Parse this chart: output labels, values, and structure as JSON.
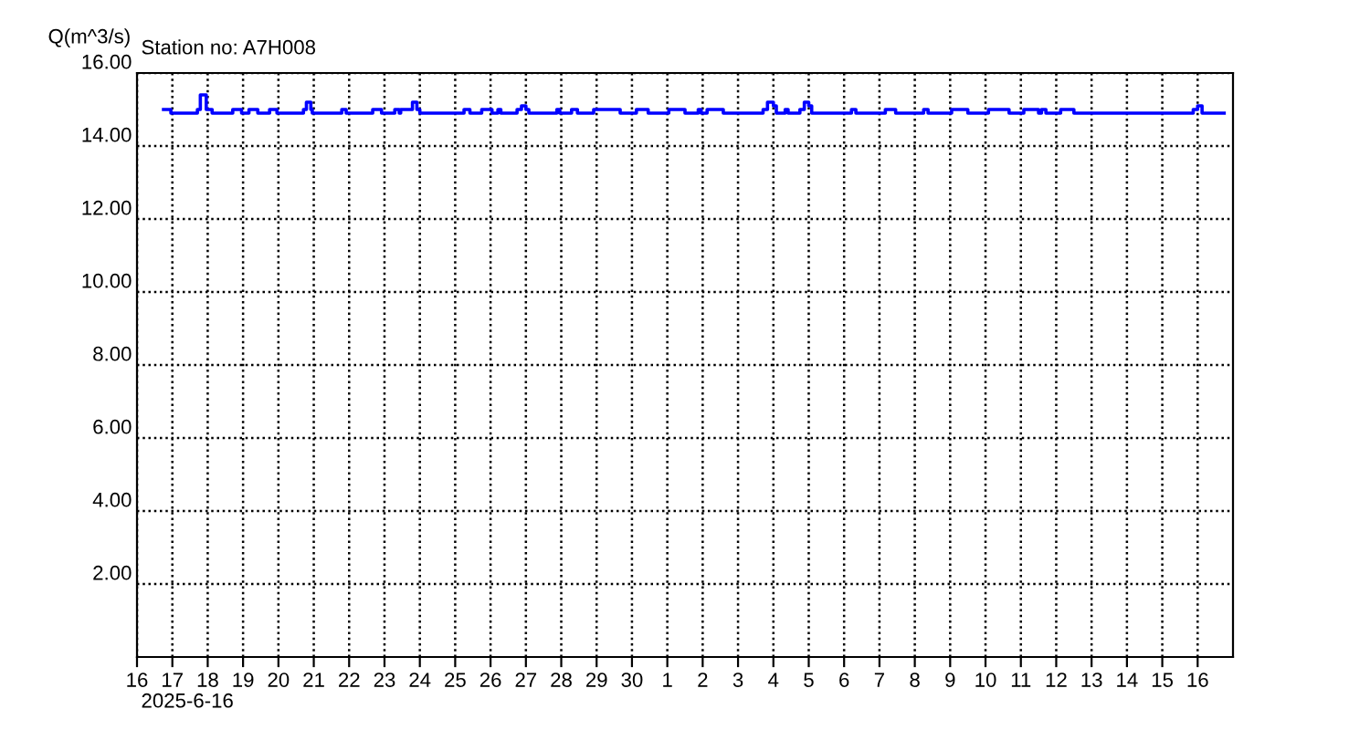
{
  "chart_data": {
    "type": "step",
    "title": "Station no: A7H008",
    "ylabel": "Q(m^3/s)",
    "annotations": [
      "2025-6-16"
    ],
    "xlim": [
      "2025-06-16",
      "2025-07-17"
    ],
    "xticks": [
      {
        "value": "2025-06-16",
        "label": "16"
      },
      {
        "value": "2025-06-17",
        "label": "17"
      },
      {
        "value": "2025-06-18",
        "label": "18"
      },
      {
        "value": "2025-06-19",
        "label": "19"
      },
      {
        "value": "2025-06-20",
        "label": "20"
      },
      {
        "value": "2025-06-21",
        "label": "21"
      },
      {
        "value": "2025-06-22",
        "label": "22"
      },
      {
        "value": "2025-06-23",
        "label": "23"
      },
      {
        "value": "2025-06-24",
        "label": "24"
      },
      {
        "value": "2025-06-25",
        "label": "25"
      },
      {
        "value": "2025-06-26",
        "label": "26"
      },
      {
        "value": "2025-06-27",
        "label": "27"
      },
      {
        "value": "2025-06-28",
        "label": "28"
      },
      {
        "value": "2025-06-29",
        "label": "29"
      },
      {
        "value": "2025-06-30",
        "label": "30"
      },
      {
        "value": "2025-07-01",
        "label": "1"
      },
      {
        "value": "2025-07-02",
        "label": "2"
      },
      {
        "value": "2025-07-03",
        "label": "3"
      },
      {
        "value": "2025-07-04",
        "label": "4"
      },
      {
        "value": "2025-07-05",
        "label": "5"
      },
      {
        "value": "2025-07-06",
        "label": "6"
      },
      {
        "value": "2025-07-07",
        "label": "7"
      },
      {
        "value": "2025-07-08",
        "label": "8"
      },
      {
        "value": "2025-07-09",
        "label": "9"
      },
      {
        "value": "2025-07-10",
        "label": "10"
      },
      {
        "value": "2025-07-11",
        "label": "11"
      },
      {
        "value": "2025-07-12",
        "label": "12"
      },
      {
        "value": "2025-07-13",
        "label": "13"
      },
      {
        "value": "2025-07-14",
        "label": "14"
      },
      {
        "value": "2025-07-15",
        "label": "15"
      },
      {
        "value": "2025-07-16",
        "label": "16"
      }
    ],
    "ylim": [
      0,
      16
    ],
    "yticks": [
      {
        "value": 2,
        "label": "2.00"
      },
      {
        "value": 4,
        "label": "4.00"
      },
      {
        "value": 6,
        "label": "6.00"
      },
      {
        "value": 8,
        "label": "8.00"
      },
      {
        "value": 10,
        "label": "10.00"
      },
      {
        "value": 12,
        "label": "12.00"
      },
      {
        "value": 14,
        "label": "14.00"
      },
      {
        "value": 16,
        "label": "16.00"
      }
    ],
    "grid": true,
    "legend": false,
    "series": [
      {
        "color": "#0000ff",
        "x": [
          "2025-06-16T18:00",
          "2025-06-16T23:00",
          "2025-06-17T17:00",
          "2025-06-17T19:00",
          "2025-06-17T23:00",
          "2025-06-18T03:00",
          "2025-06-18T17:00",
          "2025-06-18T23:00",
          "2025-06-19T04:00",
          "2025-06-19T10:00",
          "2025-06-19T18:00",
          "2025-06-19T23:00",
          "2025-06-20T17:00",
          "2025-06-20T19:00",
          "2025-06-20T22:00",
          "2025-06-20T23:00",
          "2025-06-21T19:00",
          "2025-06-21T22:00",
          "2025-06-22T16:00",
          "2025-06-22T22:00",
          "2025-06-23T07:00",
          "2025-06-23T10:00",
          "2025-06-23T11:00",
          "2025-06-23T19:00",
          "2025-06-23T22:00",
          "2025-06-24T00:00",
          "2025-06-25T06:00",
          "2025-06-25T10:00",
          "2025-06-25T18:00",
          "2025-06-26T01:00",
          "2025-06-26T05:00",
          "2025-06-26T07:00",
          "2025-06-26T18:00",
          "2025-06-26T21:00",
          "2025-06-27T00:00",
          "2025-06-27T02:00",
          "2025-06-27T21:00",
          "2025-06-27T23:00",
          "2025-06-28T07:00",
          "2025-06-28T11:00",
          "2025-06-28T22:00",
          "2025-06-29T16:00",
          "2025-06-30T03:00",
          "2025-06-30T11:00",
          "2025-07-01T01:00",
          "2025-07-01T12:00",
          "2025-07-01T21:00",
          "2025-07-01T23:00",
          "2025-07-02T03:00",
          "2025-07-02T14:00",
          "2025-07-03T17:00",
          "2025-07-03T20:00",
          "2025-07-04T00:00",
          "2025-07-04T02:00",
          "2025-07-04T08:00",
          "2025-07-04T10:00",
          "2025-07-04T18:00",
          "2025-07-04T21:00",
          "2025-07-05T00:00",
          "2025-07-05T02:00",
          "2025-07-06T05:00",
          "2025-07-06T08:00",
          "2025-07-07T04:00",
          "2025-07-07T11:00",
          "2025-07-08T06:00",
          "2025-07-08T09:00",
          "2025-07-09T01:00",
          "2025-07-09T12:00",
          "2025-07-10T02:00",
          "2025-07-10T16:00",
          "2025-07-11T02:00",
          "2025-07-11T12:00",
          "2025-07-11T14:00",
          "2025-07-11T17:00",
          "2025-07-12T03:00",
          "2025-07-12T12:00",
          "2025-07-15T21:00",
          "2025-07-16T00:00",
          "2025-07-16T03:00",
          "2025-07-16T18:00"
        ],
        "values": [
          15.0,
          14.9,
          15.0,
          15.4,
          15.0,
          14.9,
          15.0,
          14.9,
          15.0,
          14.9,
          15.0,
          14.9,
          15.0,
          15.2,
          15.0,
          14.9,
          15.0,
          14.9,
          15.0,
          14.9,
          15.0,
          14.9,
          15.0,
          15.2,
          15.0,
          14.9,
          15.0,
          14.9,
          15.0,
          14.9,
          15.0,
          14.9,
          15.0,
          15.1,
          15.0,
          14.9,
          15.0,
          14.9,
          15.0,
          14.9,
          15.0,
          14.9,
          15.0,
          14.9,
          15.0,
          14.9,
          15.0,
          14.9,
          15.0,
          14.9,
          15.0,
          15.2,
          15.1,
          14.9,
          15.0,
          14.9,
          15.0,
          15.2,
          15.1,
          14.9,
          15.0,
          14.9,
          15.0,
          14.9,
          15.0,
          14.9,
          15.0,
          14.9,
          15.0,
          14.9,
          15.0,
          14.9,
          15.0,
          14.9,
          15.0,
          14.9,
          15.0,
          15.1,
          14.9,
          14.9
        ]
      }
    ]
  }
}
